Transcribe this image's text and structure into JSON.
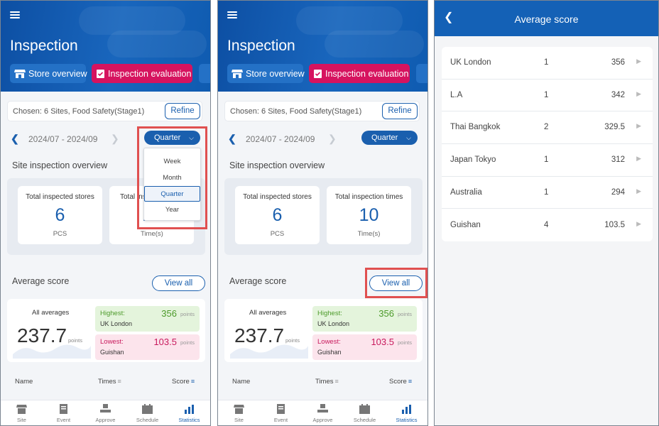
{
  "header": {
    "title": "Inspection",
    "store_overview": "Store overview",
    "inspection_evaluation": "Inspection evaluation"
  },
  "filter": {
    "chosen": "Chosen: 6 Sites, Food Safety(Stage1)",
    "refine": "Refine"
  },
  "period": {
    "date_range": "2024/07 - 2024/09",
    "selected": "Quarter",
    "options": [
      "Week",
      "Month",
      "Quarter",
      "Year"
    ]
  },
  "overview": {
    "title": "Site inspection overview",
    "stores_label": "Total inspected stores",
    "stores_value": "6",
    "stores_unit": "PCS",
    "times_label": "Total inspection times",
    "times_label_partial": "Total ins",
    "times_value": "10",
    "times_unit": "Time(s)"
  },
  "average": {
    "title": "Average score",
    "view_all": "View all",
    "all_averages": "All averages",
    "value": "237.7",
    "unit": "points",
    "highest_label": "Highest:",
    "highest_value": "356",
    "highest_site": "UK London",
    "lowest_label": "Lowest:",
    "lowest_value": "103.5",
    "lowest_site": "Guishan"
  },
  "table_header": {
    "name": "Name",
    "times": "Times",
    "score": "Score"
  },
  "tabs": [
    "Site",
    "Event",
    "Approve",
    "Schedule",
    "Statistics"
  ],
  "active_tab": "Statistics",
  "detail": {
    "title": "Average score",
    "rows": [
      {
        "name": "UK London",
        "times": "1",
        "score": "356"
      },
      {
        "name": "L.A",
        "times": "1",
        "score": "342"
      },
      {
        "name": "Thai Bangkok",
        "times": "2",
        "score": "329.5"
      },
      {
        "name": "Japan Tokyo",
        "times": "1",
        "score": "312"
      },
      {
        "name": "Australia",
        "times": "1",
        "score": "294"
      },
      {
        "name": "Guishan",
        "times": "4",
        "score": "103.5"
      }
    ]
  },
  "colors": {
    "header_blue": "#1461b6",
    "accent_blue": "#1a5fae",
    "pink": "#d6135f",
    "highlight_red": "#e05050",
    "high_green": "#4c9a2a",
    "low_pink": "#c8185c"
  }
}
